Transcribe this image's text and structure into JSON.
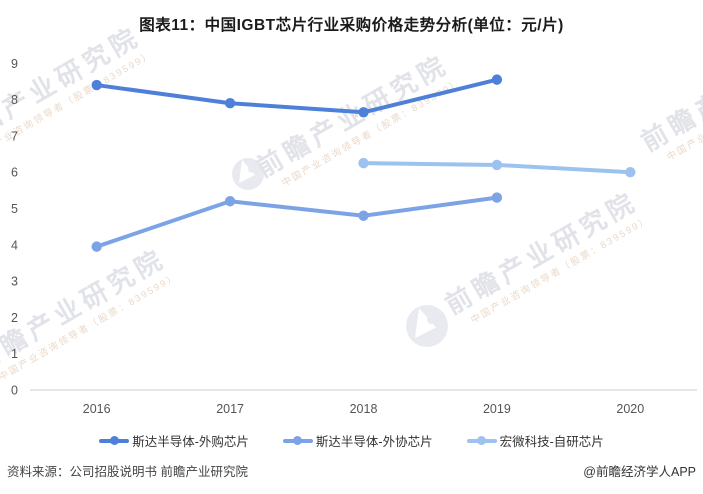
{
  "title": "图表11：中国IGBT芯片行业采购价格走势分析(单位：元/片)",
  "source_note": "资料来源：公司招股说明书 前瞻产业研究院",
  "credit": "@前瞻经济学人APP",
  "watermark": {
    "text": "前瞻产业研究院",
    "subtext": "中国产业咨询领导者（股票：839599）"
  },
  "colors": {
    "axis": "#cccccc",
    "tick_text": "#555555",
    "series1": "#4f80d9",
    "series2": "#7ba3e6",
    "series3": "#9dc2ef"
  },
  "chart_data": {
    "type": "line",
    "title": "图表11：中国IGBT芯片行业采购价格走势分析(单位：元/片)",
    "categories": [
      "2016",
      "2017",
      "2018",
      "2019",
      "2020"
    ],
    "series": [
      {
        "name": "斯达半导体-外购芯片",
        "color": "#4f80d9",
        "values": [
          8.4,
          7.9,
          7.65,
          8.55,
          null
        ]
      },
      {
        "name": "斯达半导体-外协芯片",
        "color": "#7ba3e6",
        "values": [
          3.95,
          5.2,
          4.8,
          5.3,
          null
        ]
      },
      {
        "name": "宏微科技-自研芯片",
        "color": "#9dc2ef",
        "values": [
          null,
          null,
          6.25,
          6.2,
          6.0
        ]
      }
    ],
    "xlabel": "",
    "ylabel": "",
    "ylim": [
      0,
      9
    ],
    "ytick_step": 1,
    "grid": false,
    "legend_position": "bottom"
  }
}
